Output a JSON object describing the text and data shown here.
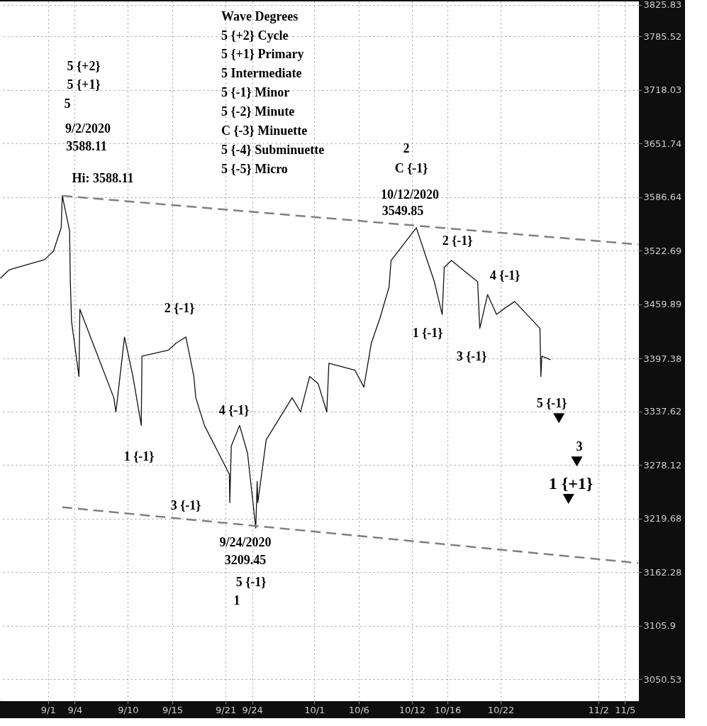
{
  "chart_data": {
    "type": "line",
    "xlim": [
      "2020-08-26T14:00",
      "2020-11-06T12:00"
    ],
    "xticks": [
      {
        "value": "2020-09-01",
        "label": "9/1"
      },
      {
        "value": "2020-09-04",
        "label": "9/4"
      },
      {
        "value": "2020-09-10",
        "label": "9/10"
      },
      {
        "value": "2020-09-15",
        "label": "9/15"
      },
      {
        "value": "2020-09-21",
        "label": "9/21"
      },
      {
        "value": "2020-09-24",
        "label": "9/24"
      },
      {
        "value": "2020-10-01",
        "label": "10/1"
      },
      {
        "value": "2020-10-06",
        "label": "10/6"
      },
      {
        "value": "2020-10-12",
        "label": "10/12"
      },
      {
        "value": "2020-10-16",
        "label": "10/16"
      },
      {
        "value": "2020-10-22",
        "label": "10/22"
      },
      {
        "value": "2020-11-02",
        "label": "11/2"
      },
      {
        "value": "2020-11-05",
        "label": "11/5"
      }
    ],
    "ylim": [
      3029,
      3830
    ],
    "yticks": [
      3050.53,
      3105.9,
      3162.28,
      3219.68,
      3278.12,
      3337.62,
      3397.38,
      3459.89,
      3522.69,
      3586.64,
      3651.74,
      3718.03,
      3785.52,
      3825.83
    ],
    "log": "y",
    "grid": true,
    "series": [
      {
        "color": "#111111",
        "line_style": "solid",
        "x": [
          "2020-08-26T15:00",
          "2020-08-27T14:30",
          "2020-08-28T14:30",
          "2020-08-31T14:30",
          "2020-09-01T14:30",
          "2020-09-02T11:30",
          "2020-09-02T14:30",
          "2020-09-03T10:15",
          "2020-09-03T12:00",
          "2020-09-03T15:30",
          "2020-09-04T11:30",
          "2020-09-04T14:00",
          "2020-09-08T09:45",
          "2020-09-08T15:30",
          "2020-09-09T14:45",
          "2020-09-10T13:30",
          "2020-09-11T12:00",
          "2020-09-11T14:00",
          "2020-09-14T13:30",
          "2020-09-15T10:15",
          "2020-09-16T12:45",
          "2020-09-17T10:15",
          "2020-09-17T15:30",
          "2020-09-18T14:45",
          "2020-09-21T10:15",
          "2020-09-21T11:30",
          "2020-09-21T15:30",
          "2020-09-22T14:00",
          "2020-09-23T11:30",
          "2020-09-24T09:45",
          "2020-09-24T13:30",
          "2020-09-24T15:15",
          "2020-09-25T14:00",
          "2020-09-28T12:00",
          "2020-09-29T10:45",
          "2020-09-30T11:30",
          "2020-10-01T10:15",
          "2020-10-02T09:45",
          "2020-10-02T15:30",
          "2020-10-05T14:00",
          "2020-10-06T14:00",
          "2020-10-07T10:15",
          "2020-10-08T09:45",
          "2020-10-09T10:15",
          "2020-10-09T15:30",
          "2020-10-12T12:00",
          "2020-10-13T12:00",
          "2020-10-14T12:45",
          "2020-10-15T09:45",
          "2020-10-15T15:30",
          "2020-10-16T10:45",
          "2020-10-19T09:45",
          "2020-10-19T15:30",
          "2020-10-20T12:45",
          "2020-10-21T12:45",
          "2020-10-22T13:30",
          "2020-10-23T14:00",
          "2020-10-26T10:15",
          "2020-10-26T12:45",
          "2020-10-26T15:15",
          "2020-10-27T14:45"
        ],
        "values": [
          3490,
          3500,
          3503,
          3512,
          3522,
          3550,
          3588.11,
          3546,
          3490,
          3440,
          3377,
          3454,
          3353,
          3337,
          3422,
          3377,
          3322,
          3400,
          3407,
          3415,
          3422,
          3377,
          3353,
          3322,
          3268,
          3237,
          3299,
          3322,
          3291,
          3209.45,
          3260,
          3237,
          3306,
          3353,
          3337,
          3377,
          3369,
          3337,
          3392,
          3384,
          3365,
          3415,
          3444,
          3480,
          3511,
          3549.85,
          3518,
          3486,
          3448,
          3503,
          3511,
          3486,
          3432,
          3471,
          3448,
          3456,
          3463,
          3432,
          3377,
          3400,
          3396
        ]
      },
      {
        "color": "#808080",
        "line_style": "dashed",
        "x": [
          "2020-09-02T14:30",
          "2020-11-06T12:00"
        ],
        "values": [
          3588.11,
          3530
        ]
      },
      {
        "color": "#808080",
        "line_style": "dashed",
        "x": [
          "2020-09-02T14:30",
          "2020-11-06T12:00"
        ],
        "values": [
          3232,
          3172
        ]
      },
      {
        "type": "scatter",
        "color": "#000000",
        "marker": "triangle",
        "x": [
          "2020-10-28T13:30",
          "2020-10-30T14:00",
          "2020-10-29T15:30"
        ],
        "values": [
          3330,
          3282,
          3241
        ]
      }
    ],
    "annotations": [
      "5 {+2}",
      "5 {+1}",
      "5",
      "9/2/2020",
      "3588.11",
      "Hi: 3588.11",
      "2 {-1}",
      "1 {-1}",
      "3 {-1}",
      "4 {-1}",
      "9/24/2020",
      "3209.45",
      "5 {-1}",
      "1",
      "2",
      "C {-1}",
      "10/12/2020",
      "3549.85",
      "2 {-1}",
      "4 {-1}",
      "1 {-1}",
      "3 {-1}",
      "5 {-1}",
      "3",
      "1 {+1}",
      "Wave Degrees",
      "5 {+2} Cycle",
      "5 {+1}  Primary",
      "5         Intermediate",
      "5 {-1}   Minor",
      "5 {-2}   Minute",
      "C {-3} Minuette",
      "5 {-4} Subminuette",
      "5 {-5} Micro"
    ]
  }
}
